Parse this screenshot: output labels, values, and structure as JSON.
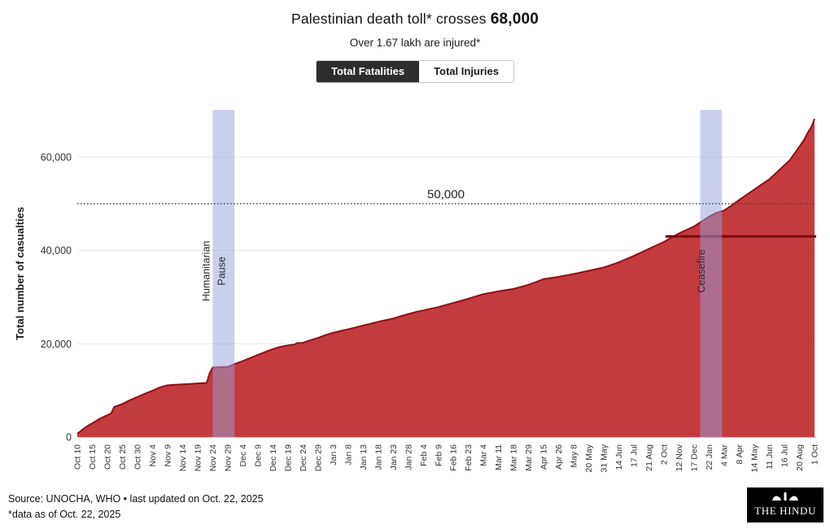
{
  "header": {
    "title_prefix": "Palestinian death toll* crosses ",
    "title_bold": "68,000",
    "subtitle": "Over 1.67 lakh are injured*"
  },
  "tabs": {
    "fatalities": "Total Fatalities",
    "injuries": "Total Injuries"
  },
  "footer": {
    "source": "Source: UNOCHA, WHO • last updated on Oct. 22, 2025",
    "note": "*data as of Oct. 22, 2025",
    "logo_text": "THE HINDU"
  },
  "chart_data": {
    "type": "area",
    "title": "Palestinian death toll* crosses 68,000",
    "subtitle": "Over 1.67 lakh are injured*",
    "xlabel": "",
    "ylabel": "Total number of casualties",
    "ylim": [
      0,
      70000
    ],
    "yticks": [
      0,
      20000,
      40000,
      60000
    ],
    "ytick_labels": [
      "0",
      "20,000",
      "40,000",
      "60,000"
    ],
    "grid": true,
    "legend": "none",
    "area_fill": "#c43b3f",
    "area_stroke": "#8e1014",
    "band_fill": "rgba(150,160,220,0.5)",
    "reference_line": {
      "value": 50000,
      "label": "50,000",
      "style": "dotted"
    },
    "flat_line": {
      "value": 43000,
      "from_index": 39.1,
      "color": "#7a0c10"
    },
    "bands": [
      {
        "label": "Humanitarian Pause",
        "from_index": 9.0,
        "to_index": 10.45
      },
      {
        "label": "Ceasefire",
        "from_index": 41.4,
        "to_index": 42.85
      }
    ],
    "x_tick_labels": [
      "Oct 10",
      "Oct 15",
      "Oct 20",
      "Oct 25",
      "Oct 30",
      "Nov 4",
      "Nov 9",
      "Nov 14",
      "Nov 19",
      "Nov 24",
      "Nov 29",
      "Dec 4",
      "Dec 9",
      "Dec 14",
      "Dec 19",
      "Dec 24",
      "Dec 29",
      "Jan 3",
      "Jan 8",
      "Jan 13",
      "Jan 18",
      "Jan 23",
      "Jan 28",
      "Feb 4",
      "Feb 9",
      "Feb 16",
      "Feb 23",
      "Mar 4",
      "Mar 11",
      "Mar 18",
      "Mar 29",
      "Apr 15",
      "Apr 26",
      "May 8",
      "20 May",
      "31 May",
      "14 Jun",
      "17 Jul",
      "21 Aug",
      "2 Oct",
      "12 Nov",
      "17 Dec",
      "22 Jan",
      "4 Mar",
      "8 Apr",
      "14 May",
      "11 Jun",
      "16 Jul",
      "20 Aug",
      "1 Oct"
    ],
    "points": [
      [
        0,
        700
      ],
      [
        0.35,
        1600
      ],
      [
        0.7,
        2400
      ],
      [
        1,
        2950
      ],
      [
        1.5,
        3950
      ],
      [
        2,
        4700
      ],
      [
        2.25,
        5050
      ],
      [
        2.45,
        6450
      ],
      [
        3,
        7100
      ],
      [
        3.5,
        7900
      ],
      [
        4,
        8600
      ],
      [
        4.5,
        9300
      ],
      [
        5,
        9950
      ],
      [
        5.5,
        10650
      ],
      [
        6,
        11100
      ],
      [
        6.5,
        11200
      ],
      [
        7,
        11280
      ],
      [
        7.5,
        11380
      ],
      [
        8,
        11500
      ],
      [
        8.6,
        11600
      ],
      [
        8.8,
        13700
      ],
      [
        9,
        14900
      ],
      [
        9.5,
        14980
      ],
      [
        10,
        15050
      ],
      [
        10.45,
        15650
      ],
      [
        11,
        16300
      ],
      [
        11.5,
        16950
      ],
      [
        12,
        17600
      ],
      [
        12.5,
        18250
      ],
      [
        13,
        18850
      ],
      [
        13.5,
        19350
      ],
      [
        14,
        19650
      ],
      [
        14.45,
        19850
      ],
      [
        14.6,
        20150
      ],
      [
        15,
        20200
      ],
      [
        15.5,
        20750
      ],
      [
        16,
        21250
      ],
      [
        16.5,
        21850
      ],
      [
        17,
        22350
      ],
      [
        17.5,
        22750
      ],
      [
        18,
        23100
      ],
      [
        18.5,
        23500
      ],
      [
        19,
        23900
      ],
      [
        19.5,
        24300
      ],
      [
        20,
        24700
      ],
      [
        20.5,
        25050
      ],
      [
        21,
        25400
      ],
      [
        21.5,
        25900
      ],
      [
        22,
        26350
      ],
      [
        22.5,
        26800
      ],
      [
        23,
        27150
      ],
      [
        23.5,
        27500
      ],
      [
        24,
        27850
      ],
      [
        24.5,
        28300
      ],
      [
        25,
        28750
      ],
      [
        25.5,
        29200
      ],
      [
        26,
        29650
      ],
      [
        26.5,
        30150
      ],
      [
        27,
        30650
      ],
      [
        27.5,
        30950
      ],
      [
        28,
        31250
      ],
      [
        28.5,
        31500
      ],
      [
        29,
        31750
      ],
      [
        29.5,
        32200
      ],
      [
        30,
        32650
      ],
      [
        30.5,
        33250
      ],
      [
        31,
        33850
      ],
      [
        31.5,
        34100
      ],
      [
        32,
        34350
      ],
      [
        32.5,
        34650
      ],
      [
        33,
        34950
      ],
      [
        33.5,
        35300
      ],
      [
        34,
        35650
      ],
      [
        34.5,
        36000
      ],
      [
        35,
        36350
      ],
      [
        35.5,
        36900
      ],
      [
        36,
        37450
      ],
      [
        36.5,
        38150
      ],
      [
        37,
        38850
      ],
      [
        37.5,
        39600
      ],
      [
        38,
        40350
      ],
      [
        38.5,
        41100
      ],
      [
        39,
        41850
      ],
      [
        39.5,
        42750
      ],
      [
        40,
        43650
      ],
      [
        40.5,
        44400
      ],
      [
        41,
        45150
      ],
      [
        41.5,
        46200
      ],
      [
        42,
        47250
      ],
      [
        42.4,
        47950
      ],
      [
        43,
        48550
      ],
      [
        43.5,
        49650
      ],
      [
        44,
        50850
      ],
      [
        44.5,
        51950
      ],
      [
        45,
        53050
      ],
      [
        45.5,
        54150
      ],
      [
        46,
        55250
      ],
      [
        46.5,
        56750
      ],
      [
        47,
        58250
      ],
      [
        47.35,
        59300
      ],
      [
        47.7,
        60900
      ],
      [
        48,
        62250
      ],
      [
        48.3,
        63700
      ],
      [
        48.6,
        65500
      ],
      [
        48.8,
        66500
      ],
      [
        49,
        68200
      ]
    ]
  }
}
